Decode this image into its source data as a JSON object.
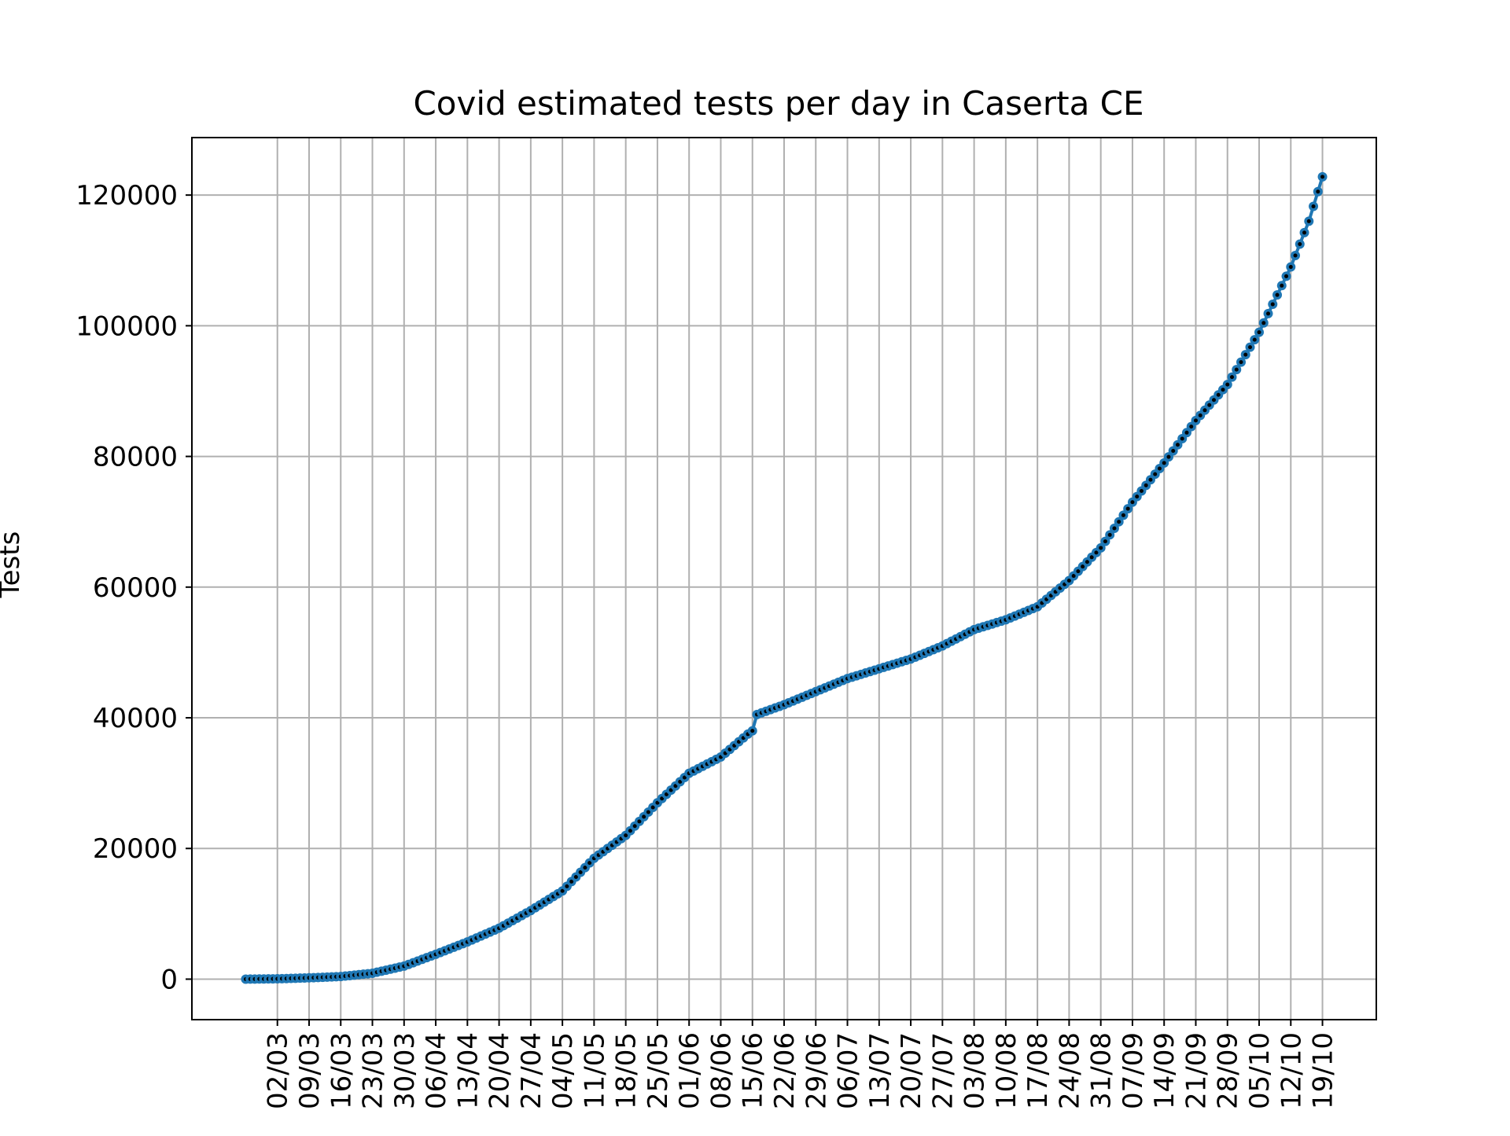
{
  "chart_data": {
    "type": "scatter",
    "title": "Covid estimated tests per day in Caserta CE",
    "xlabel": "",
    "ylabel": "Tests",
    "x_start": "24/02",
    "x_end": "19/10",
    "x_ticks": [
      "02/03",
      "09/03",
      "16/03",
      "23/03",
      "30/03",
      "06/04",
      "13/04",
      "20/04",
      "27/04",
      "04/05",
      "11/05",
      "18/05",
      "25/05",
      "01/06",
      "08/06",
      "15/06",
      "22/06",
      "29/06",
      "06/07",
      "13/07",
      "20/07",
      "27/07",
      "03/08",
      "10/08",
      "17/08",
      "24/08",
      "31/08",
      "07/09",
      "14/09",
      "21/09",
      "28/09",
      "05/10",
      "12/10",
      "19/10"
    ],
    "y_ticks": [
      "0",
      "20000",
      "40000",
      "60000",
      "80000",
      "100000",
      "120000"
    ],
    "ylim": [
      -6200,
      128800
    ],
    "grid": true,
    "color_line": "#1f77b4",
    "color_marker_center": "#000000",
    "series": [
      {
        "key_points": [
          {
            "x": "24/02",
            "y": 0
          },
          {
            "x": "02/03",
            "y": 50
          },
          {
            "x": "09/03",
            "y": 200
          },
          {
            "x": "16/03",
            "y": 400
          },
          {
            "x": "23/03",
            "y": 900
          },
          {
            "x": "30/03",
            "y": 2000
          },
          {
            "x": "06/04",
            "y": 3800
          },
          {
            "x": "13/04",
            "y": 5700
          },
          {
            "x": "20/04",
            "y": 7800
          },
          {
            "x": "27/04",
            "y": 10500
          },
          {
            "x": "04/05",
            "y": 13500
          },
          {
            "x": "11/05",
            "y": 18500
          },
          {
            "x": "18/05",
            "y": 22000
          },
          {
            "x": "25/05",
            "y": 27000
          },
          {
            "x": "01/06",
            "y": 31500
          },
          {
            "x": "08/06",
            "y": 34000
          },
          {
            "x": "14/06",
            "y": 37500
          },
          {
            "x": "15/06",
            "y": 38000
          },
          {
            "x": "16/06",
            "y": 40500
          },
          {
            "x": "22/06",
            "y": 42000
          },
          {
            "x": "29/06",
            "y": 44000
          },
          {
            "x": "06/07",
            "y": 46000
          },
          {
            "x": "13/07",
            "y": 47500
          },
          {
            "x": "20/07",
            "y": 49000
          },
          {
            "x": "27/07",
            "y": 51000
          },
          {
            "x": "03/08",
            "y": 53500
          },
          {
            "x": "10/08",
            "y": 55000
          },
          {
            "x": "17/08",
            "y": 57000
          },
          {
            "x": "24/08",
            "y": 61000
          },
          {
            "x": "31/08",
            "y": 66000
          },
          {
            "x": "07/09",
            "y": 73000
          },
          {
            "x": "14/09",
            "y": 79000
          },
          {
            "x": "21/09",
            "y": 85500
          },
          {
            "x": "28/09",
            "y": 91000
          },
          {
            "x": "05/10",
            "y": 99000
          },
          {
            "x": "12/10",
            "y": 109000
          },
          {
            "x": "16/10",
            "y": 116000
          },
          {
            "x": "19/10",
            "y": 122800
          }
        ]
      }
    ]
  }
}
